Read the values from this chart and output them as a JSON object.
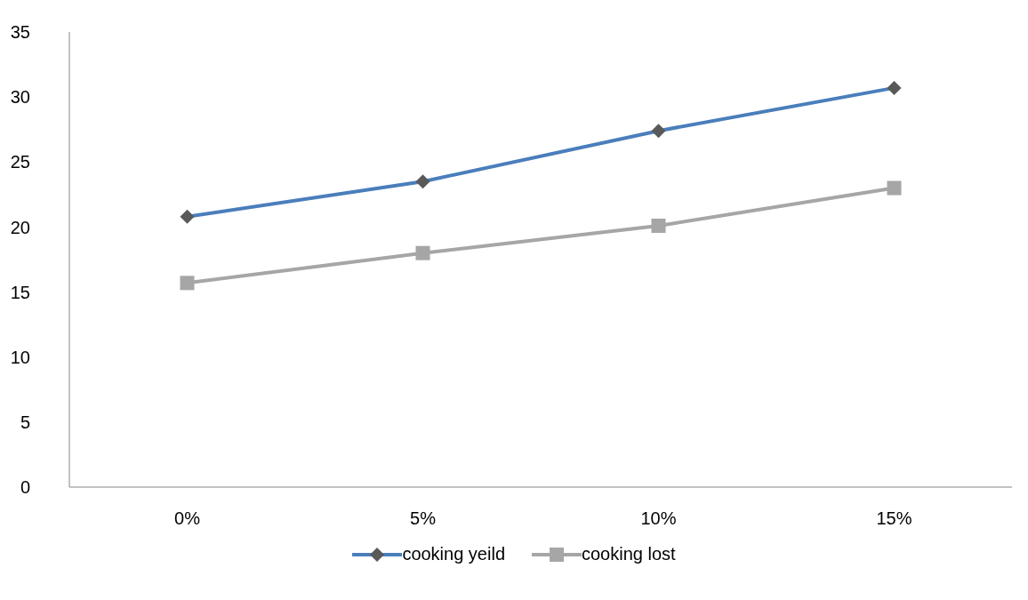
{
  "chart_data": {
    "type": "line",
    "categories": [
      "0%",
      "5%",
      "10%",
      "15%"
    ],
    "series": [
      {
        "name": "cooking yeild",
        "color": "#4a7ebb",
        "marker": "diamond",
        "values": [
          20.8,
          23.5,
          27.4,
          30.7
        ]
      },
      {
        "name": "cooking lost",
        "color": "#a6a6a6",
        "marker": "square",
        "values": [
          15.7,
          18.0,
          20.1,
          23.0
        ]
      }
    ],
    "ylim": [
      0,
      35
    ],
    "yticks": [
      0,
      5,
      10,
      15,
      20,
      25,
      30,
      35
    ],
    "grid": false,
    "legend": "bottom"
  }
}
